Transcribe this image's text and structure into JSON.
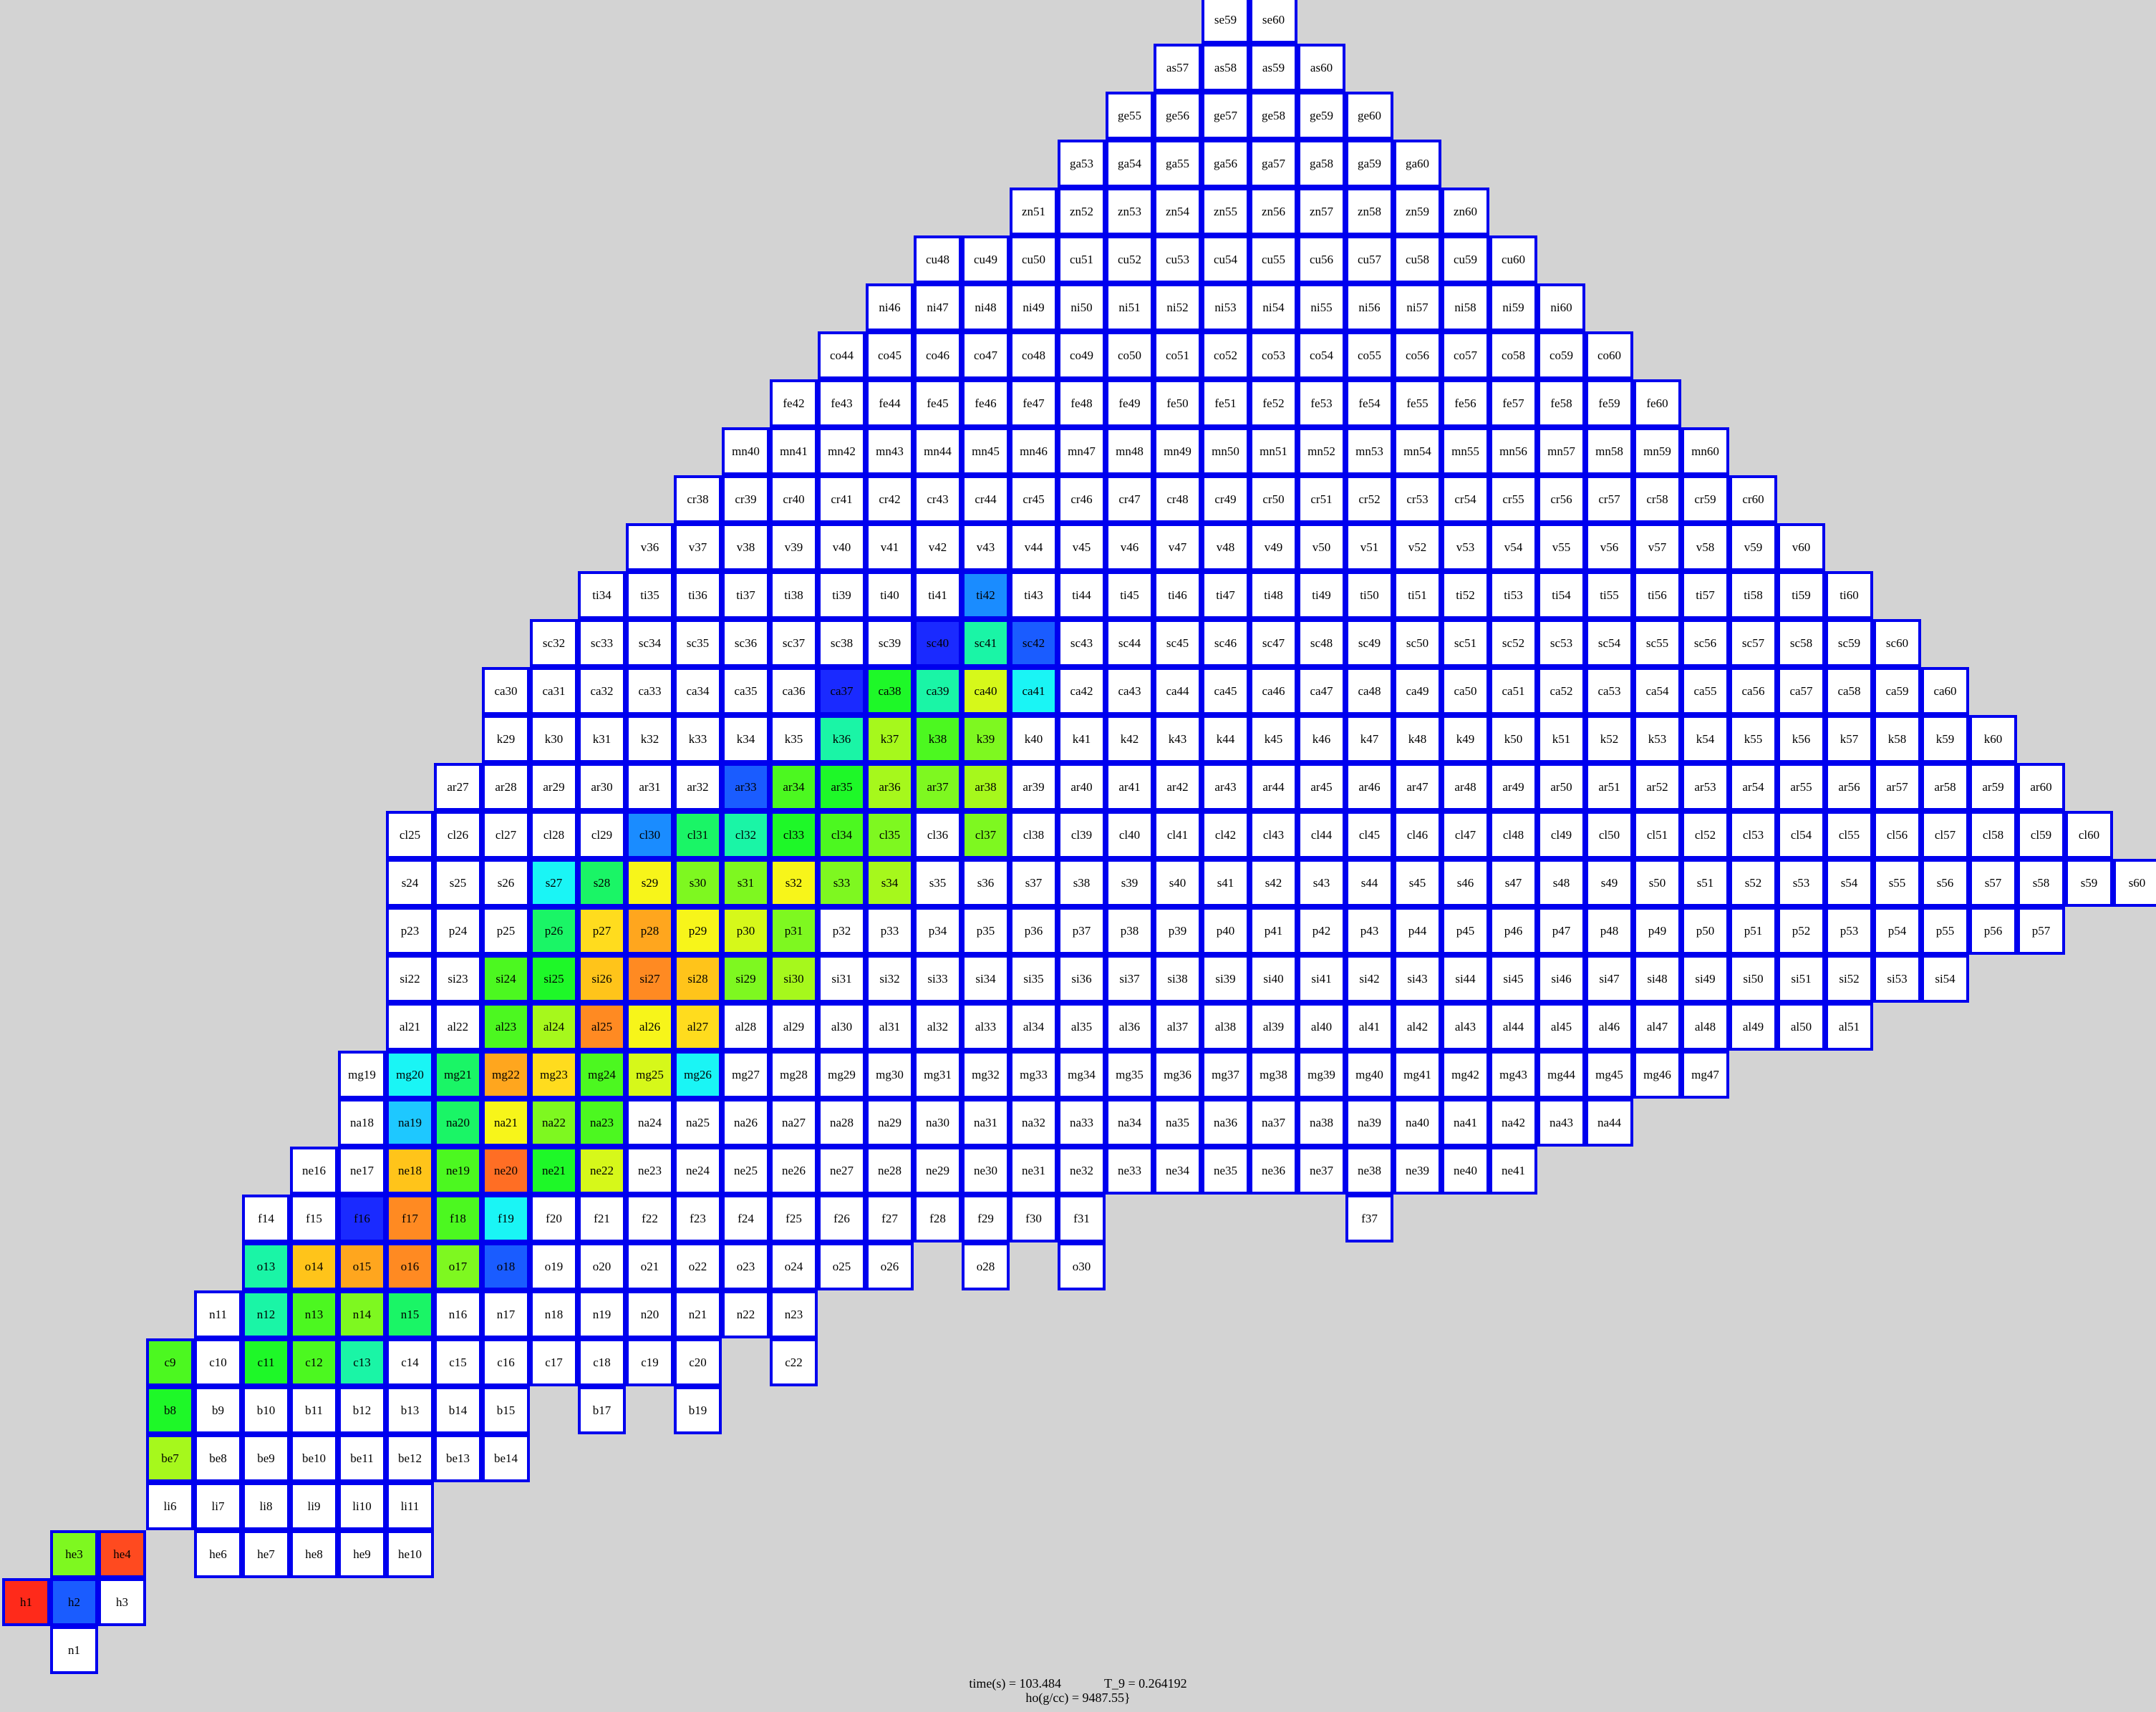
{
  "footer": {
    "time": "time(s) = 103.484",
    "temp": "T_9 = 0.264192",
    "rho": "ho(g/cc) = 9487.55}"
  },
  "palette": {
    "white": "#ffffff",
    "red": "#ff2a1a",
    "red_orange": "#ff4a1f",
    "orange_deep": "#ff6e24",
    "orange": "#ff8a22",
    "light_orange": "#ffa61e",
    "amber": "#ffc41a",
    "gold": "#ffdc1e",
    "yellow": "#f7f51a",
    "yellow_lime": "#d6f81a",
    "lime": "#a6f81c",
    "light_green": "#7ef820",
    "green": "#4cf820",
    "bright_green": "#1ef828",
    "spring_green": "#1af566",
    "aquamarine": "#1af5a6",
    "cyan": "#1af5f5",
    "sky": "#1ec8ff",
    "azure": "#1a8cff",
    "royal": "#1a5cff",
    "blue": "#1a2aff"
  },
  "grid": {
    "border_color": "#0000ee",
    "rows": [
      {
        "el": "n",
        "from": 1,
        "to": 1
      },
      {
        "el": "h",
        "from": 1,
        "to": 3
      },
      {
        "el": "he",
        "from": 3,
        "to": 10,
        "missing": [
          5
        ]
      },
      {
        "el": "li",
        "from": 6,
        "to": 11
      },
      {
        "el": "be",
        "from": 7,
        "to": 14
      },
      {
        "el": "b",
        "from": 8,
        "to": 19,
        "missing": [
          16,
          18
        ]
      },
      {
        "el": "c",
        "from": 9,
        "to": 22,
        "missing": [
          21
        ]
      },
      {
        "el": "n",
        "from": 11,
        "to": 23
      },
      {
        "el": "o",
        "from": 13,
        "to": 30,
        "missing": [
          27,
          29
        ]
      },
      {
        "el": "f",
        "from": 14,
        "to": 37,
        "missing": [
          32,
          33,
          34,
          35,
          36
        ]
      },
      {
        "el": "ne",
        "from": 16,
        "to": 41
      },
      {
        "el": "na",
        "from": 18,
        "to": 44
      },
      {
        "el": "mg",
        "from": 19,
        "to": 47
      },
      {
        "el": "al",
        "from": 21,
        "to": 51
      },
      {
        "el": "si",
        "from": 22,
        "to": 54
      },
      {
        "el": "p",
        "from": 23,
        "to": 57
      },
      {
        "el": "s",
        "from": 24,
        "to": 60
      },
      {
        "el": "cl",
        "from": 25,
        "to": 60
      },
      {
        "el": "ar",
        "from": 27,
        "to": 60
      },
      {
        "el": "k",
        "from": 29,
        "to": 60
      },
      {
        "el": "ca",
        "from": 30,
        "to": 60
      },
      {
        "el": "sc",
        "from": 32,
        "to": 60
      },
      {
        "el": "ti",
        "from": 34,
        "to": 60
      },
      {
        "el": "v",
        "from": 36,
        "to": 60
      },
      {
        "el": "cr",
        "from": 38,
        "to": 60
      },
      {
        "el": "mn",
        "from": 40,
        "to": 60
      },
      {
        "el": "fe",
        "from": 42,
        "to": 60
      },
      {
        "el": "co",
        "from": 44,
        "to": 60
      },
      {
        "el": "ni",
        "from": 46,
        "to": 60
      },
      {
        "el": "cu",
        "from": 48,
        "to": 60
      },
      {
        "el": "zn",
        "from": 51,
        "to": 60
      },
      {
        "el": "ga",
        "from": 53,
        "to": 60
      },
      {
        "el": "ge",
        "from": 55,
        "to": 60
      },
      {
        "el": "as",
        "from": 57,
        "to": 60
      },
      {
        "el": "se",
        "from": 59,
        "to": 60
      }
    ],
    "highlights": {
      "h1": "red",
      "h2": "royal",
      "he3": "light_green",
      "he4": "red_orange",
      "be7": "lime",
      "b8": "bright_green",
      "c9": "green",
      "c11": "bright_green",
      "c12": "green",
      "c13": "aquamarine",
      "n12": "aquamarine",
      "n13": "green",
      "n14": "light_green",
      "n15": "spring_green",
      "o13": "aquamarine",
      "o14": "amber",
      "o15": "light_orange",
      "o16": "orange",
      "o17": "light_green",
      "o18": "royal",
      "f16": "blue",
      "f17": "orange",
      "f18": "green",
      "f19": "cyan",
      "ne18": "amber",
      "ne19": "green",
      "ne20": "orange_deep",
      "ne21": "bright_green",
      "ne22": "yellow_lime",
      "na19": "sky",
      "na20": "spring_green",
      "na21": "yellow",
      "na22": "light_green",
      "na23": "green",
      "mg20": "cyan",
      "mg21": "spring_green",
      "mg22": "light_orange",
      "mg23": "gold",
      "mg24": "green",
      "mg25": "yellow_lime",
      "mg26": "cyan",
      "al23": "green",
      "al24": "lime",
      "al25": "orange",
      "al26": "yellow",
      "al27": "gold",
      "si24": "green",
      "si25": "bright_green",
      "si26": "amber",
      "si27": "orange",
      "si28": "amber",
      "si29": "light_green",
      "si30": "lime",
      "p26": "spring_green",
      "p27": "gold",
      "p28": "light_orange",
      "p29": "yellow",
      "p30": "yellow_lime",
      "p31": "light_green",
      "s27": "cyan",
      "s28": "spring_green",
      "s29": "yellow",
      "s30": "light_green",
      "s31": "light_green",
      "s32": "yellow",
      "s33": "light_green",
      "s34": "lime",
      "cl30": "azure",
      "cl31": "spring_green",
      "cl32": "aquamarine",
      "cl33": "bright_green",
      "cl34": "green",
      "cl35": "light_green",
      "cl37": "light_green",
      "ar33": "royal",
      "ar34": "green",
      "ar35": "bright_green",
      "ar36": "lime",
      "ar37": "light_green",
      "ar38": "lime",
      "k36": "aquamarine",
      "k37": "lime",
      "k38": "green",
      "k39": "light_green",
      "ca37": "blue",
      "ca38": "bright_green",
      "ca39": "aquamarine",
      "ca40": "yellow_lime",
      "ca41": "cyan",
      "sc40": "blue",
      "sc41": "aquamarine",
      "sc42": "royal",
      "ti42": "azure"
    }
  }
}
